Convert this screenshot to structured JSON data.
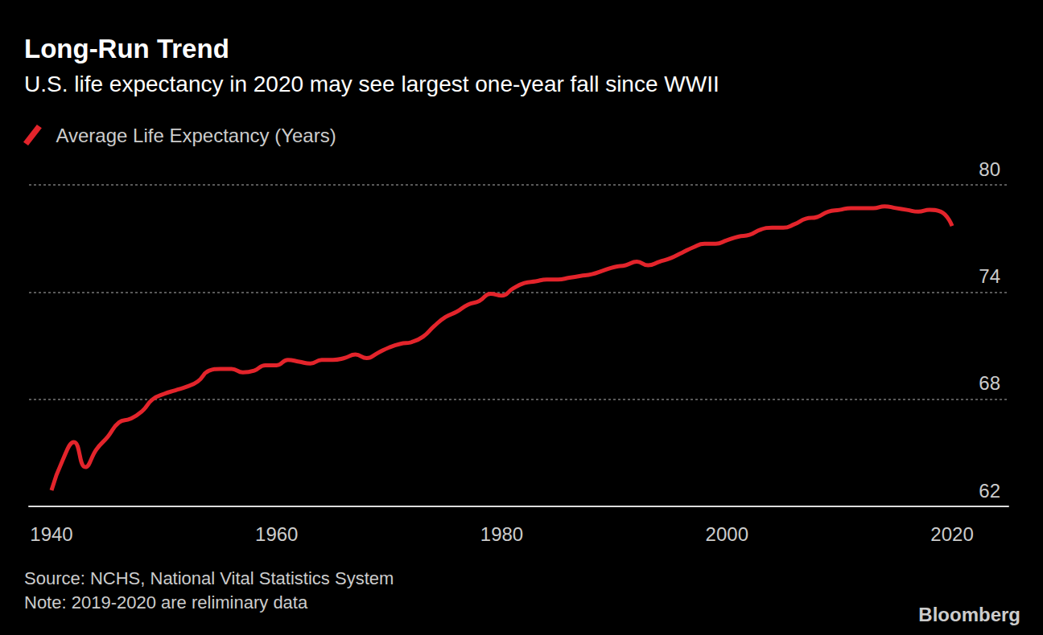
{
  "chart_data": {
    "type": "line",
    "title": "Long-Run Trend",
    "subtitle": "U.S. life expectancy in 2020 may see largest one-year fall since WWII",
    "x": [
      1940,
      1941,
      1942,
      1943,
      1944,
      1945,
      1946,
      1947,
      1948,
      1949,
      1950,
      1951,
      1952,
      1953,
      1954,
      1955,
      1956,
      1957,
      1958,
      1959,
      1960,
      1961,
      1962,
      1963,
      1964,
      1965,
      1966,
      1967,
      1968,
      1969,
      1970,
      1971,
      1972,
      1973,
      1974,
      1975,
      1976,
      1977,
      1978,
      1979,
      1980,
      1981,
      1982,
      1983,
      1984,
      1985,
      1986,
      1987,
      1988,
      1989,
      1990,
      1991,
      1992,
      1993,
      1994,
      1995,
      1996,
      1997,
      1998,
      1999,
      2000,
      2001,
      2002,
      2003,
      2004,
      2005,
      2006,
      2007,
      2008,
      2009,
      2010,
      2011,
      2012,
      2013,
      2014,
      2015,
      2016,
      2017,
      2018,
      2019,
      2020
    ],
    "series": [
      {
        "name": "Average Life Expectancy (Years)",
        "color": "#e3242b",
        "values": [
          62.9,
          64.6,
          65.6,
          64.2,
          65.2,
          65.9,
          66.7,
          66.9,
          67.3,
          68.0,
          68.3,
          68.5,
          68.7,
          69.0,
          69.6,
          69.7,
          69.7,
          69.5,
          69.6,
          69.9,
          69.9,
          70.2,
          70.1,
          70.0,
          70.2,
          70.2,
          70.3,
          70.5,
          70.3,
          70.6,
          70.9,
          71.1,
          71.2,
          71.5,
          72.1,
          72.6,
          72.9,
          73.3,
          73.5,
          73.9,
          73.8,
          74.2,
          74.5,
          74.6,
          74.7,
          74.7,
          74.8,
          74.9,
          75.0,
          75.2,
          75.4,
          75.5,
          75.7,
          75.5,
          75.7,
          75.9,
          76.2,
          76.5,
          76.7,
          76.7,
          76.9,
          77.1,
          77.2,
          77.5,
          77.6,
          77.6,
          77.8,
          78.1,
          78.2,
          78.5,
          78.6,
          78.7,
          78.7,
          78.7,
          78.8,
          78.7,
          78.6,
          78.5,
          78.6,
          78.5,
          77.7
        ]
      }
    ],
    "xlim": [
      1938,
      2025
    ],
    "xticks": [
      1940,
      1960,
      1980,
      2000,
      2020
    ],
    "ylim": [
      62,
      80
    ],
    "yticks": [
      62,
      68,
      74,
      80
    ],
    "grid": true,
    "legend": "top-left",
    "source": "Source: NCHS, National Vital Statistics System",
    "note": "Note: 2019-2020 are reliminary data",
    "credit": "Bloomberg"
  }
}
